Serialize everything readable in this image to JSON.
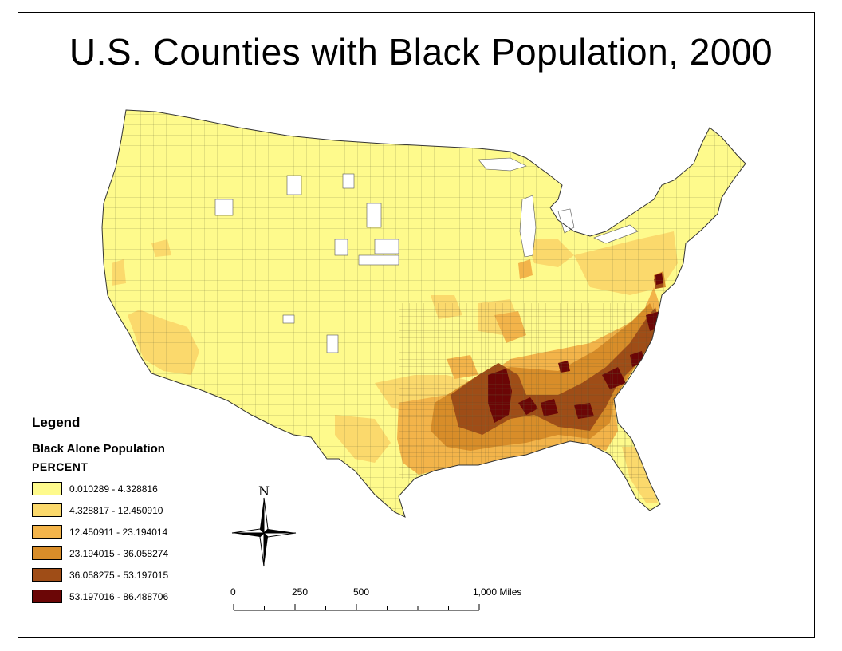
{
  "title": "U.S. Counties with Black Population, 2000",
  "legend": {
    "title": "Legend",
    "layer_name": "Black Alone Population",
    "field_name": "PERCENT",
    "classes": [
      {
        "label": "0.010289 - 4.328816",
        "color": "#fefa8c"
      },
      {
        "label": "4.328817 - 12.450910",
        "color": "#fbd96c"
      },
      {
        "label": "12.450911 - 23.194014",
        "color": "#f3b44a"
      },
      {
        "label": "23.194015 - 36.058274",
        "color": "#d88d29"
      },
      {
        "label": "36.058275 - 53.197015",
        "color": "#9f4d17"
      },
      {
        "label": "53.197016 - 86.488706",
        "color": "#6b0606"
      }
    ]
  },
  "north_arrow": {
    "letter": "N",
    "icon": "north-arrow-icon"
  },
  "scale_bar": {
    "labels": [
      "0",
      "250",
      "500",
      "1,000 Miles"
    ],
    "values": [
      0,
      250,
      500,
      1000
    ],
    "units": "Miles"
  }
}
